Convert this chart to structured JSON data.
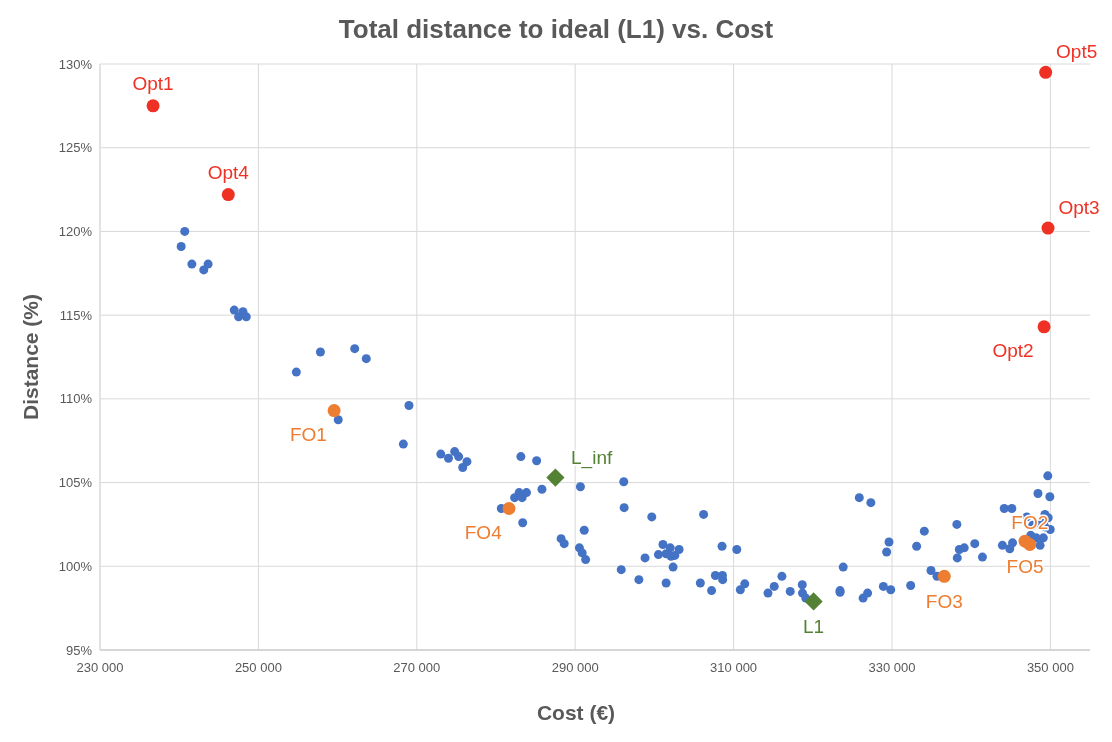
{
  "chart_data": {
    "type": "scatter",
    "title": "Total distance to ideal (L1) vs. Cost",
    "xlabel": "Cost (€)",
    "ylabel": "Distance (%)",
    "xlim": [
      230000,
      355000
    ],
    "ylim": [
      95,
      130
    ],
    "xticks": [
      {
        "value": 230000,
        "label": "230 000"
      },
      {
        "value": 250000,
        "label": "250 000"
      },
      {
        "value": 270000,
        "label": "270 000"
      },
      {
        "value": 290000,
        "label": "290 000"
      },
      {
        "value": 310000,
        "label": "310 000"
      },
      {
        "value": 330000,
        "label": "330 000"
      },
      {
        "value": 350000,
        "label": "350 000"
      }
    ],
    "yticks": [
      {
        "value": 95,
        "label": "95%"
      },
      {
        "value": 100,
        "label": "100%"
      },
      {
        "value": 105,
        "label": "105%"
      },
      {
        "value": 110,
        "label": "110%"
      },
      {
        "value": 115,
        "label": "115%"
      },
      {
        "value": 120,
        "label": "120%"
      },
      {
        "value": 125,
        "label": "125%"
      },
      {
        "value": 130,
        "label": "130%"
      }
    ],
    "grid": true,
    "marker": "circle",
    "series": [
      {
        "color": "#4472c4",
        "x": [
          240700,
          240250,
          241600,
          243100,
          243650,
          246950,
          248050,
          247500,
          248470,
          257830,
          262160,
          263620,
          254790,
          260080,
          269010,
          268300,
          273030,
          274000,
          274780,
          275280,
          275800,
          276330,
          283140,
          285130,
          280670,
          282350,
          282920,
          283300,
          283850,
          283370,
          285800,
          290660,
          296130,
          296180,
          299670,
          306210,
          291140,
          288220,
          288610,
          290530,
          290880,
          291320,
          295810,
          298040,
          298820,
          300510,
          301080,
          301480,
          302000,
          302100,
          302580,
          303120,
          302360,
          301480,
          305800,
          307220,
          307700,
          308590,
          308620,
          308540,
          310400,
          310850,
          311410,
          314340,
          315130,
          316100,
          317150,
          318670,
          318700,
          319110,
          323840,
          323440,
          323440,
          325870,
          327330,
          326350,
          326920,
          328910,
          329840,
          329320,
          329620,
          332360,
          333110,
          334080,
          334920,
          335680,
          338190,
          338500,
          338240,
          339120,
          340450,
          341420,
          344170,
          345130,
          343940,
          344870,
          345220,
          347020,
          348430,
          349670,
          349930,
          349310,
          349720,
          347770,
          348610,
          349140,
          349310,
          349980,
          347520,
          348220,
          349110,
          348700
        ],
        "values": [
          120.0,
          119.1,
          118.05,
          117.7,
          118.05,
          115.3,
          115.2,
          114.9,
          114.9,
          112.8,
          113.0,
          112.4,
          111.6,
          108.75,
          109.6,
          107.3,
          106.7,
          106.45,
          106.85,
          106.55,
          105.9,
          106.25,
          106.55,
          106.3,
          103.45,
          104.1,
          104.4,
          104.1,
          104.4,
          102.6,
          104.6,
          104.75,
          105.05,
          103.5,
          102.95,
          103.1,
          102.15,
          101.65,
          101.35,
          101.1,
          100.8,
          100.4,
          99.8,
          99.2,
          100.5,
          100.7,
          101.3,
          100.75,
          101.1,
          100.6,
          100.65,
          101.0,
          99.95,
          99.0,
          99.0,
          98.55,
          99.45,
          99.45,
          99.2,
          101.2,
          101.0,
          98.6,
          98.95,
          98.4,
          98.8,
          99.4,
          98.5,
          98.9,
          98.4,
          98.1,
          99.95,
          98.55,
          98.45,
          104.1,
          103.8,
          98.1,
          98.4,
          98.8,
          98.6,
          100.85,
          101.45,
          98.85,
          101.2,
          102.1,
          99.75,
          99.4,
          102.5,
          101.0,
          100.5,
          101.1,
          101.35,
          100.55,
          103.45,
          103.45,
          101.25,
          101.05,
          101.4,
          102.95,
          104.35,
          105.4,
          104.15,
          103.1,
          102.9,
          102.45,
          102.55,
          102.65,
          102.35,
          102.2,
          101.85,
          101.7,
          101.7,
          101.25
        ]
      },
      {
        "color": "#ee3124",
        "x": [
          236700,
          246200,
          349400,
          349700,
          349200
        ],
        "values": [
          127.5,
          122.2,
          129.5,
          120.2,
          114.3
        ]
      },
      {
        "color": "#ed7d31",
        "x": [
          259560,
          281640,
          336600,
          346800,
          347400
        ],
        "values": [
          109.3,
          103.45,
          99.4,
          101.5,
          101.3
        ]
      },
      {
        "color": "#548235",
        "marker": "diamond",
        "x": [
          287500,
          320100
        ],
        "values": [
          105.3,
          97.9
        ]
      }
    ],
    "annotations": [
      {
        "text": "Opt1",
        "x": 236700,
        "y": 127.5
      },
      {
        "text": "Opt4",
        "x": 246200,
        "y": 122.2
      },
      {
        "text": "Opt5",
        "x": 349400,
        "y": 129.5
      },
      {
        "text": "Opt3",
        "x": 349700,
        "y": 120.2
      },
      {
        "text": "Opt2",
        "x": 349200,
        "y": 114.3
      },
      {
        "text": "FO1",
        "x": 259560,
        "y": 109.3
      },
      {
        "text": "FO4",
        "x": 281640,
        "y": 103.45
      },
      {
        "text": "FO3",
        "x": 336600,
        "y": 99.4
      },
      {
        "text": "FO5",
        "x": 346800,
        "y": 101.5
      },
      {
        "text": "FO2",
        "x": 347400,
        "y": 101.3
      },
      {
        "text": "L_inf",
        "x": 287500,
        "y": 105.3
      },
      {
        "text": "L1",
        "x": 320100,
        "y": 97.9
      }
    ]
  }
}
